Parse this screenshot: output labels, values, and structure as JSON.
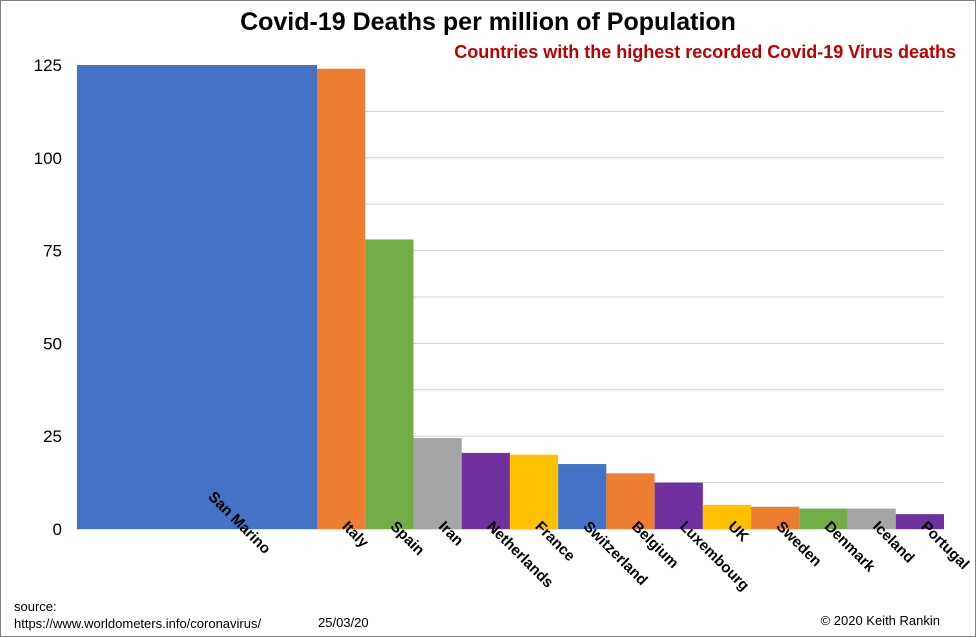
{
  "chart_data": {
    "type": "bar",
    "title": "Covid-19 Deaths per million of Population",
    "subtitle": "Countries with  the highest recorded Covid-19 Virus  deaths",
    "xlabel": "",
    "ylabel": "",
    "ylim": [
      0,
      125
    ],
    "yticks": [
      0,
      25,
      50,
      75,
      100,
      125
    ],
    "grid": true,
    "categories": [
      "San Marino",
      "Italy",
      "Spain",
      "Iran",
      "Netherlands",
      "France",
      "Switzerland",
      "Belgium",
      "Luxembourg",
      "UK",
      "Sweden",
      "Denmark",
      "Iceland",
      "Portugal"
    ],
    "values": [
      125,
      124,
      78,
      24.5,
      20.5,
      20,
      17.5,
      15,
      12.5,
      6.5,
      6,
      5.5,
      5.5,
      4
    ],
    "colors": [
      "#4472c4",
      "#ed7d31",
      "#70ad47",
      "#a5a5a5",
      "#7030a0",
      "#ffc000",
      "#4472c4",
      "#ed7d31",
      "#7030a0",
      "#ffc000",
      "#ed7d31",
      "#70ad47",
      "#a5a5a5",
      "#7030a0"
    ]
  },
  "footer": {
    "source_label": "source:",
    "source_url": "https://www.worldometers.info/coronavirus/",
    "date": "25/03/20",
    "credit": "© 2020  Keith Rankin"
  }
}
